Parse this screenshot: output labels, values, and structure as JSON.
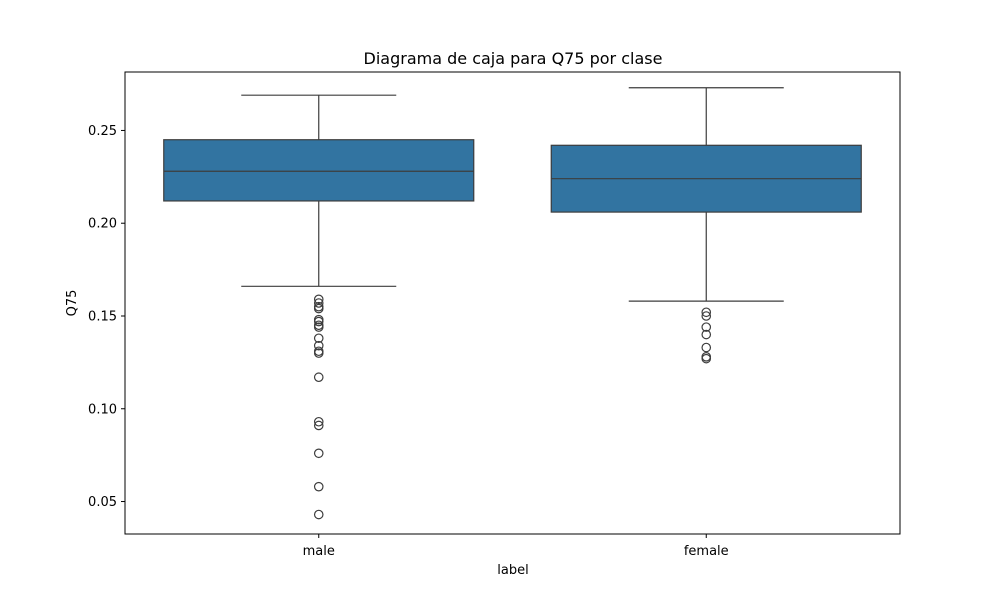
{
  "chart_data": {
    "type": "box",
    "title": "Diagrama de caja para Q75 por clase",
    "xlabel": "label",
    "ylabel": "Q75",
    "ylim": [
      0.0325,
      0.2815
    ],
    "yticks": [
      0.05,
      0.1,
      0.15,
      0.2,
      0.25
    ],
    "ytick_labels": [
      "0.05",
      "0.10",
      "0.15",
      "0.20",
      "0.25"
    ],
    "categories": [
      "male",
      "female"
    ],
    "box_color": "#3274a1",
    "line_color": "#3d3d3d",
    "boxes": [
      {
        "category": "male",
        "whisker_low": 0.166,
        "q1": 0.212,
        "median": 0.228,
        "q3": 0.245,
        "whisker_high": 0.269,
        "outliers": [
          0.159,
          0.157,
          0.155,
          0.154,
          0.148,
          0.147,
          0.145,
          0.144,
          0.138,
          0.134,
          0.131,
          0.13,
          0.117,
          0.093,
          0.091,
          0.076,
          0.058,
          0.043
        ]
      },
      {
        "category": "female",
        "whisker_low": 0.158,
        "q1": 0.206,
        "median": 0.224,
        "q3": 0.242,
        "whisker_high": 0.273,
        "outliers": [
          0.152,
          0.15,
          0.144,
          0.14,
          0.133,
          0.128,
          0.127
        ]
      }
    ]
  }
}
